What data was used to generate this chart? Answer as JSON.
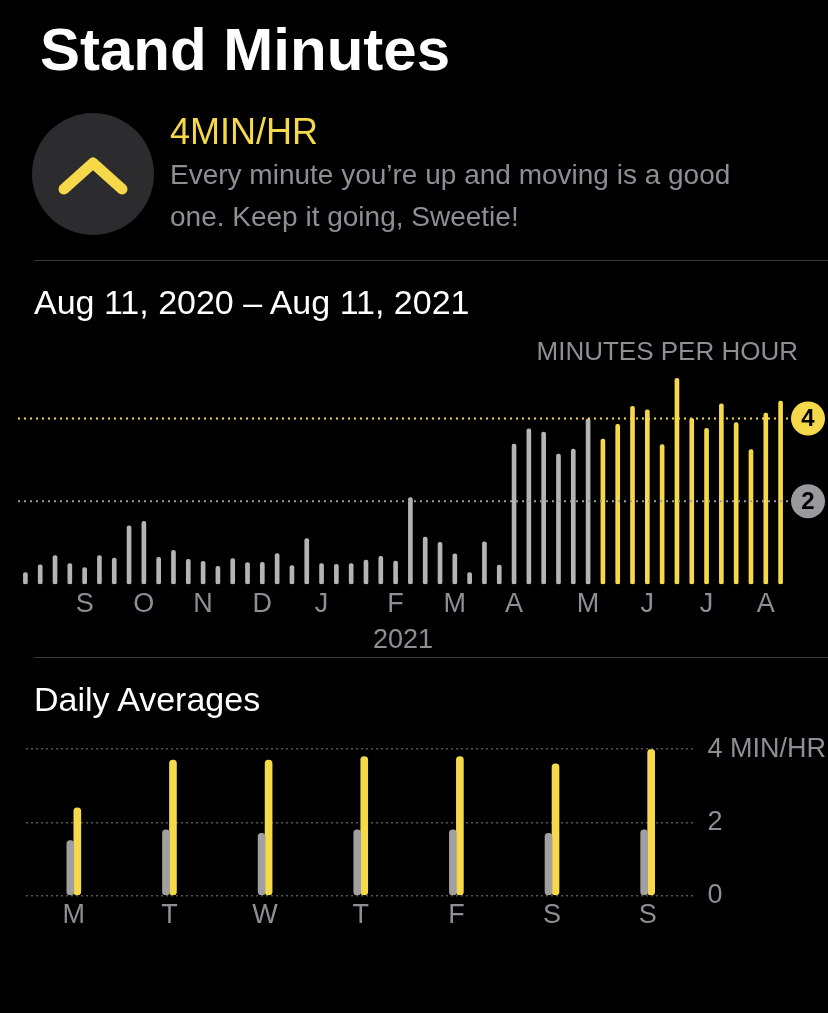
{
  "chart_data": [
    {
      "type": "bar",
      "title": "Stand Minutes",
      "subtitle": "Aug 11, 2020 – Aug 11, 2021",
      "ylabel": "MINUTES PER HOUR",
      "xlabel": "2021",
      "annotations": [
        "4MIN/HR",
        "Every minute you’re up and moving is a good one. Keep it going, Sweetie!"
      ],
      "categories": [
        null,
        null,
        null,
        null,
        "S",
        null,
        null,
        null,
        "O",
        null,
        null,
        null,
        "N",
        null,
        null,
        null,
        "D",
        null,
        null,
        null,
        "J",
        null,
        null,
        null,
        null,
        "F",
        null,
        null,
        null,
        "M",
        null,
        null,
        null,
        "A",
        null,
        null,
        null,
        null,
        "M",
        null,
        null,
        null,
        "J",
        null,
        null,
        null,
        "J",
        null,
        null,
        null,
        "A",
        null
      ],
      "values": [
        0.28,
        0.47,
        0.69,
        0.5,
        0.4,
        0.69,
        0.63,
        1.41,
        1.52,
        0.65,
        0.82,
        0.6,
        0.55,
        0.43,
        0.62,
        0.52,
        0.53,
        0.74,
        0.45,
        1.1,
        0.5,
        0.48,
        0.5,
        0.58,
        0.67,
        0.56,
        2.09,
        1.14,
        1.01,
        0.73,
        0.28,
        1.02,
        0.46,
        3.38,
        3.75,
        3.67,
        3.14,
        3.26,
        3.99,
        3.5,
        3.86,
        4.29,
        4.21,
        3.37,
        4.97,
        4.0,
        3.76,
        4.35,
        3.9,
        3.25,
        4.13,
        4.42
      ],
      "colors": [
        "#b4b4b4",
        "#b4b4b4",
        "#b4b4b4",
        "#b4b4b4",
        "#b4b4b4",
        "#b4b4b4",
        "#b4b4b4",
        "#b4b4b4",
        "#b4b4b4",
        "#b4b4b4",
        "#b4b4b4",
        "#b4b4b4",
        "#b4b4b4",
        "#b4b4b4",
        "#b4b4b4",
        "#b4b4b4",
        "#b4b4b4",
        "#b4b4b4",
        "#b4b4b4",
        "#b4b4b4",
        "#b4b4b4",
        "#b4b4b4",
        "#b4b4b4",
        "#b4b4b4",
        "#b4b4b4",
        "#b4b4b4",
        "#b4b4b4",
        "#b4b4b4",
        "#b4b4b4",
        "#b4b4b4",
        "#b4b4b4",
        "#b4b4b4",
        "#b4b4b4",
        "#b4b4b4",
        "#b4b4b4",
        "#b4b4b4",
        "#b4b4b4",
        "#b4b4b4",
        "#b4b4b4",
        "#f5d94a",
        "#f5d94a",
        "#f5d94a",
        "#f5d94a",
        "#f5d94a",
        "#f5d94a",
        "#f5d94a",
        "#f5d94a",
        "#f5d94a",
        "#f5d94a",
        "#f5d94a",
        "#f5d94a",
        "#f5d94a"
      ],
      "ylim": [
        0,
        5
      ],
      "ref_lines": [
        {
          "axis": "y",
          "value": 2,
          "label": "2",
          "color": "#9a9a9e",
          "line_style": "dotted"
        },
        {
          "axis": "y",
          "value": 4,
          "label": "4",
          "color": "#f5d94a",
          "line_style": "dotted"
        }
      ],
      "grid": false,
      "legend": false
    },
    {
      "type": "bar",
      "title": "Daily Averages",
      "categories": [
        "M",
        "T",
        "W",
        "T",
        "F",
        "S",
        "S"
      ],
      "series": [
        {
          "color": "#a0a0a0",
          "values": [
            1.5,
            1.8,
            1.7,
            1.8,
            1.8,
            1.7,
            1.8
          ]
        },
        {
          "color": "#f5d94a",
          "values": [
            2.4,
            3.7,
            3.7,
            3.8,
            3.8,
            3.6,
            4.0
          ]
        }
      ],
      "ylim": [
        0,
        4
      ],
      "yticks": [
        0,
        2,
        {
          "value": 4,
          "label": "4 MIN/HR"
        }
      ],
      "grid": "y",
      "legend": false
    }
  ]
}
